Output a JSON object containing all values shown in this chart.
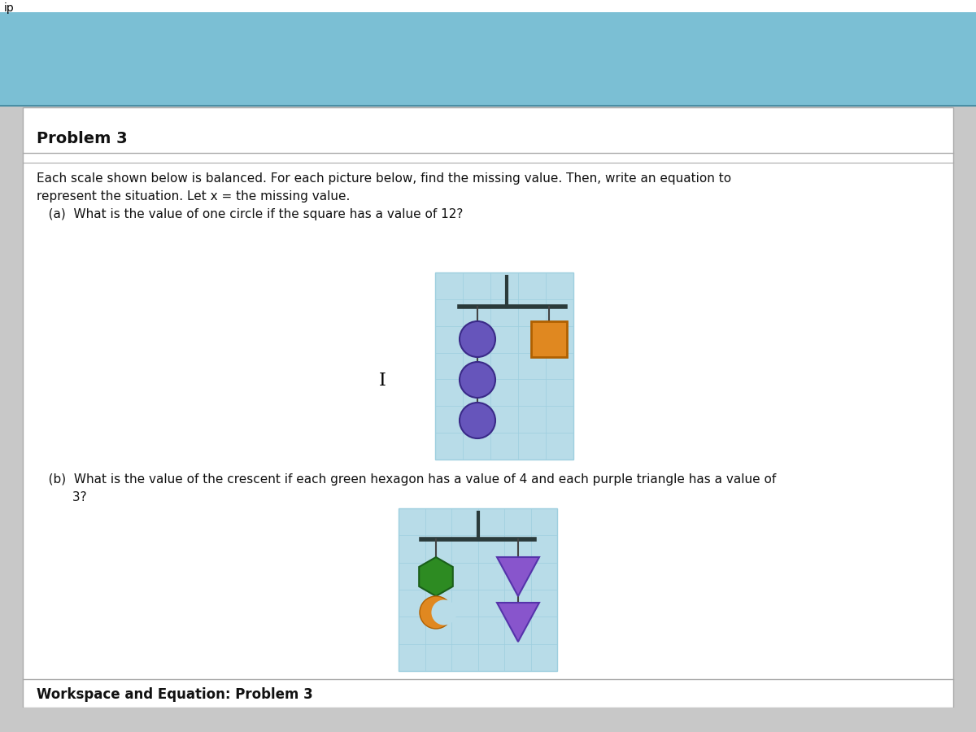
{
  "bg_color": "#c8c8c8",
  "header_color_top": "#7bbfd4",
  "header_color_bottom": "#5aa8c0",
  "title": "Problem 3",
  "problem_text_line1": "Each scale shown below is balanced. For each picture below, find the missing value. Then, write an equation to",
  "problem_text_line2": "represent the situation. Let x = the missing value.",
  "part_a_text": "   (a)  What is the value of one circle if the square has a value of 12?",
  "part_b_line1": "   (b)  What is the value of the crescent if each green hexagon has a value of 4 and each purple triangle has a value of",
  "part_b_line2": "         3?",
  "workspace_text": "Workspace and Equation: Problem 3",
  "scale_bg_color": "#b8dce8",
  "scale_grid_color": "#9ecfdf",
  "circle_color": "#6655bb",
  "square_color": "#e08820",
  "hexagon_color": "#2d8b22",
  "triangle_color": "#8855cc",
  "crescent_color": "#e08820",
  "crescent_inner_color": "#b8dce8",
  "beam_color": "#2a3a3a",
  "string_color": "#444444",
  "border_color": "#aaaaaa",
  "text_color": "#111111"
}
